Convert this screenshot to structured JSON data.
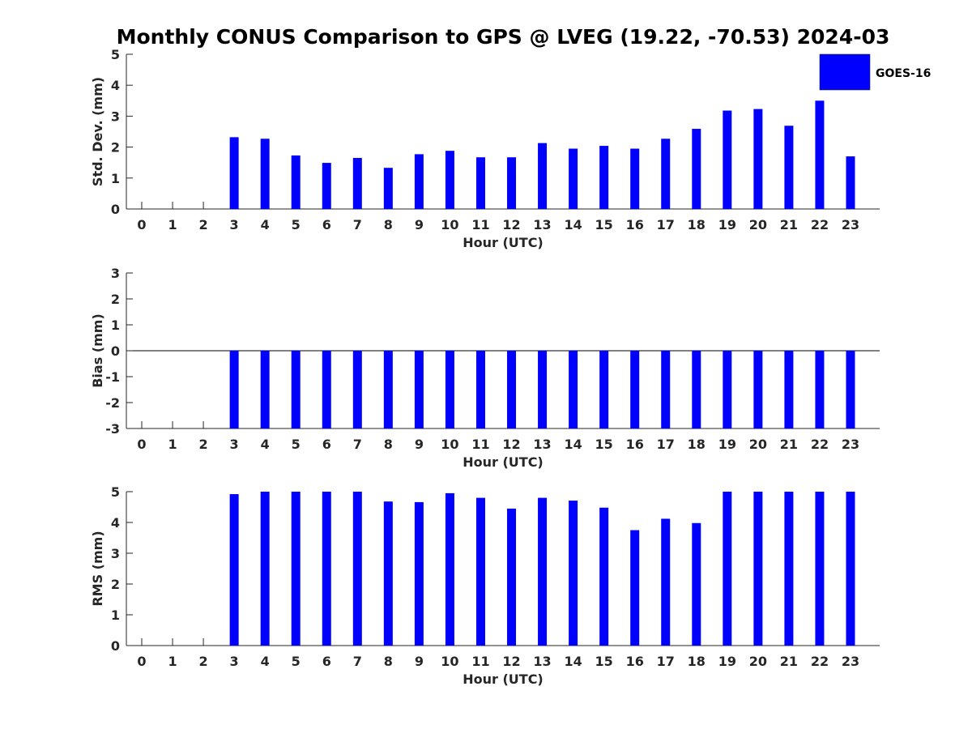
{
  "chart_data": {
    "type": "bar",
    "title": "Monthly CONUS Comparison to GPS @ LVEG (19.22, -70.53) 2024-03",
    "legend": {
      "label": "GOES-16",
      "color": "#0000ff",
      "placement": "top-right"
    },
    "categories": [
      "0",
      "1",
      "2",
      "3",
      "4",
      "5",
      "6",
      "7",
      "8",
      "9",
      "10",
      "11",
      "12",
      "13",
      "14",
      "15",
      "16",
      "17",
      "18",
      "19",
      "20",
      "21",
      "22",
      "23"
    ],
    "panels": [
      {
        "key": "std",
        "ylabel": "Std. Dev. (mm)",
        "xlabel": "Hour (UTC)",
        "ylim": [
          0,
          5
        ],
        "yticks": [
          "0",
          "1",
          "2",
          "3",
          "4",
          "5"
        ],
        "values": [
          null,
          null,
          null,
          2.32,
          2.27,
          1.73,
          1.49,
          1.65,
          1.33,
          1.77,
          1.88,
          1.67,
          1.67,
          2.13,
          1.95,
          2.04,
          1.95,
          2.27,
          2.59,
          3.18,
          3.23,
          2.69,
          3.5,
          1.7
        ]
      },
      {
        "key": "bias",
        "ylabel": "Bias (mm)",
        "xlabel": "Hour (UTC)",
        "ylim": [
          -3,
          3
        ],
        "yticks": [
          "-3",
          "-2",
          "-1",
          "0",
          "1",
          "2",
          "3"
        ],
        "values": [
          null,
          null,
          null,
          -3,
          -3,
          -3,
          -3,
          -3,
          -3,
          -3,
          -3,
          -3,
          -3,
          -3,
          -3,
          -3,
          -3,
          -3,
          -3,
          -3,
          -3,
          -3,
          -3,
          -3
        ]
      },
      {
        "key": "rms",
        "ylabel": "RMS (mm)",
        "xlabel": "Hour (UTC)",
        "ylim": [
          0,
          5
        ],
        "yticks": [
          "0",
          "1",
          "2",
          "3",
          "4",
          "5"
        ],
        "values": [
          null,
          null,
          null,
          4.92,
          5.0,
          5.0,
          5.0,
          5.0,
          4.68,
          4.66,
          4.95,
          4.8,
          4.45,
          4.8,
          4.71,
          4.48,
          3.75,
          4.12,
          3.98,
          5.0,
          5.0,
          5.0,
          5.0,
          5.0
        ]
      }
    ]
  }
}
